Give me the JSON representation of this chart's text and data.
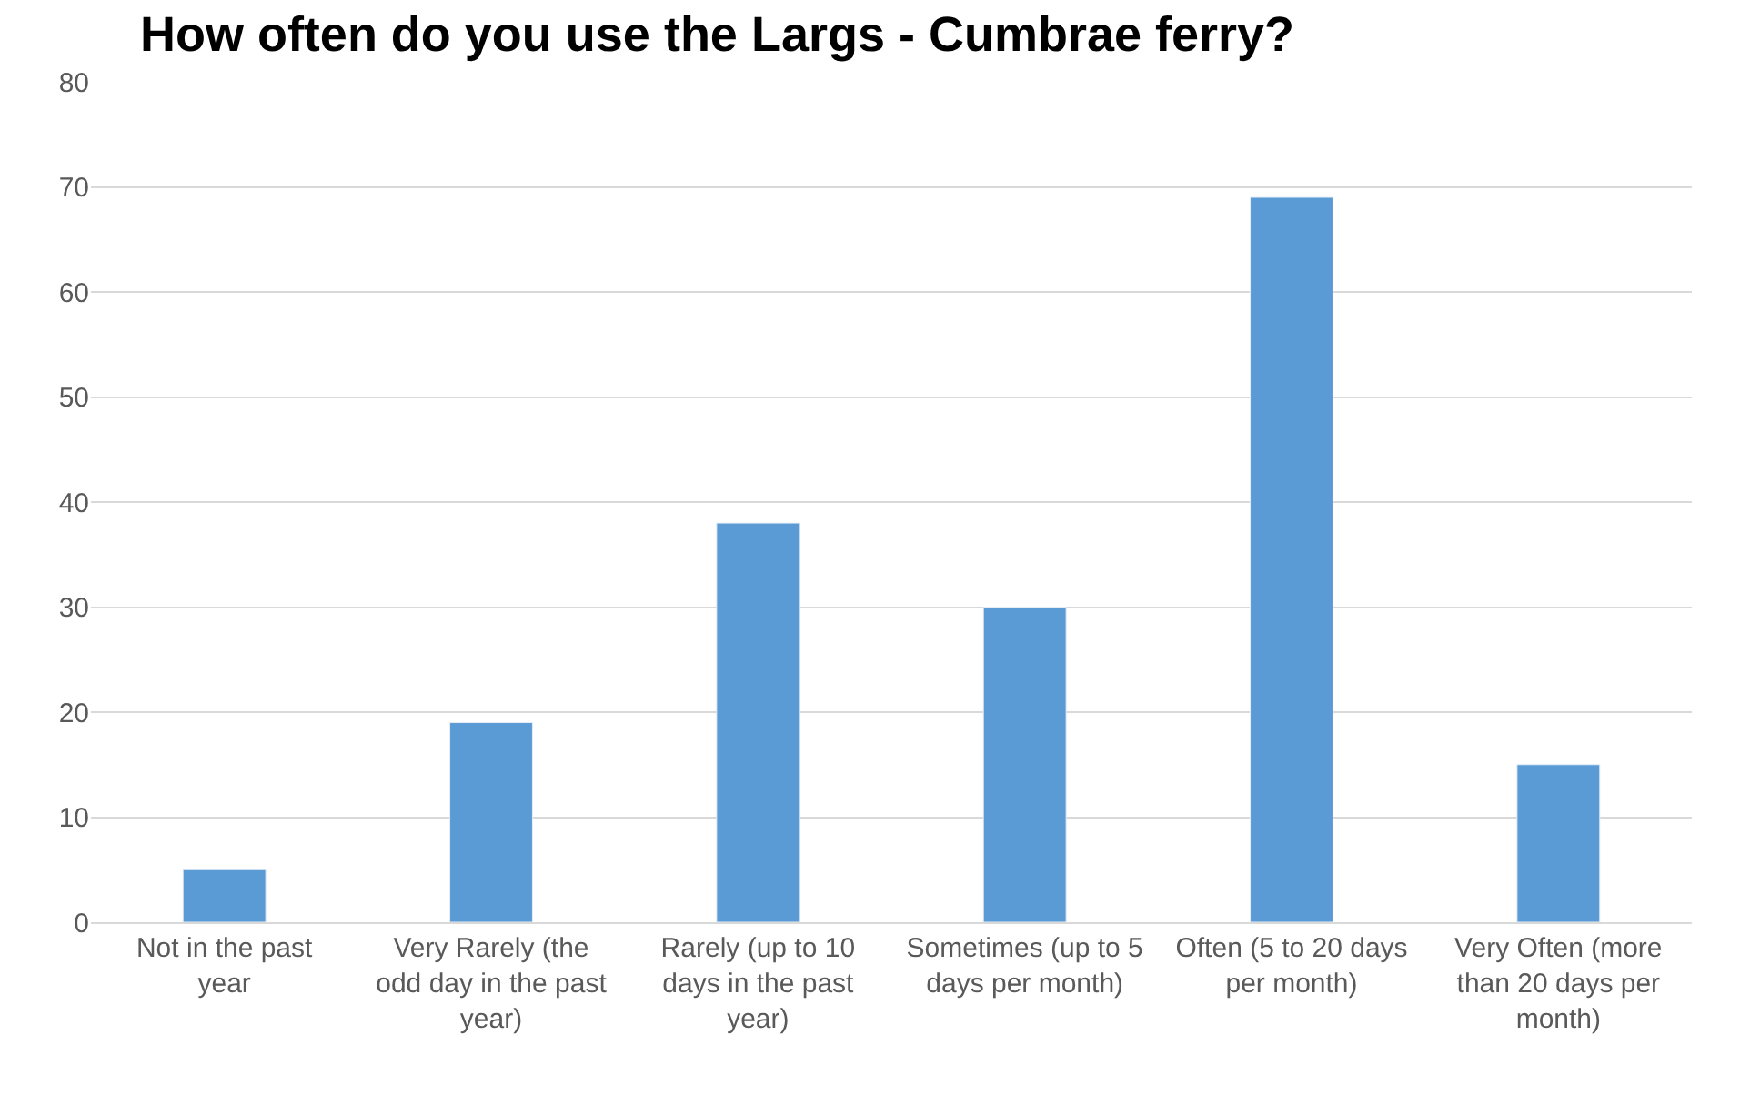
{
  "chart_data": {
    "type": "bar",
    "title": "How often do you use the Largs - Cumbrae ferry?",
    "categories": [
      "Not in the past year",
      "Very Rarely (the odd day in the past year)",
      "Rarely (up to 10 days in the past year)",
      "Sometimes (up to 5 days per month)",
      "Often (5 to 20 days per month)",
      "Very Often (more than 20 days per month)"
    ],
    "values": [
      5,
      19,
      38,
      30,
      69,
      15
    ],
    "color": "#5b9bd5",
    "ylim": [
      0,
      80
    ],
    "yticks": [
      0,
      10,
      20,
      30,
      40,
      50,
      60,
      70,
      80
    ],
    "grid": "y",
    "legend": false
  }
}
